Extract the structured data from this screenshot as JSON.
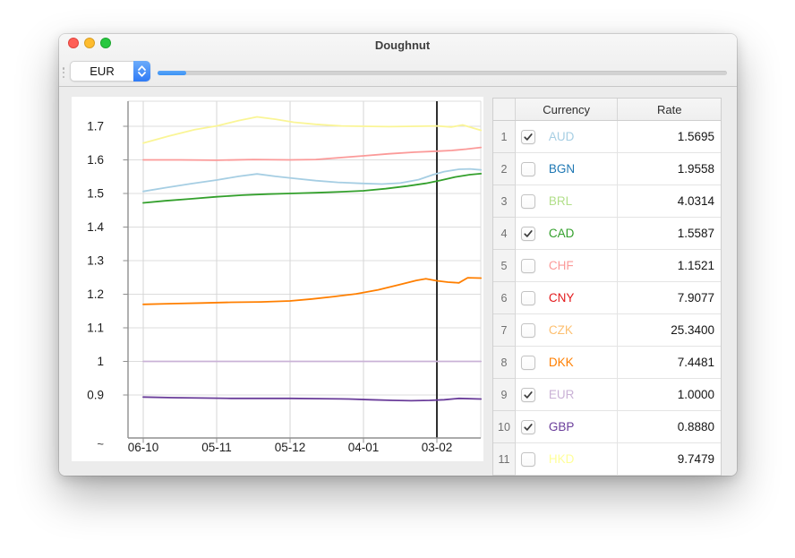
{
  "window": {
    "title": "Doughnut"
  },
  "toolbar": {
    "currency_selector": {
      "value": "EUR"
    },
    "slider": {
      "fill_ratio": 0.05,
      "track_color": "#d2d2d2",
      "fill_color": "#3b92f5"
    },
    "accent_color": "#2f7bf6"
  },
  "table": {
    "columns": [
      "Currency",
      "Rate"
    ],
    "rows": [
      {
        "num": "1",
        "code": "AUD",
        "rate": "1.5695",
        "checked": true,
        "color": "#a6cee3"
      },
      {
        "num": "2",
        "code": "BGN",
        "rate": "1.9558",
        "checked": false,
        "color": "#1f78b4"
      },
      {
        "num": "3",
        "code": "BRL",
        "rate": "4.0314",
        "checked": false,
        "color": "#b2df8a"
      },
      {
        "num": "4",
        "code": "CAD",
        "rate": "1.5587",
        "checked": true,
        "color": "#33a02c"
      },
      {
        "num": "5",
        "code": "CHF",
        "rate": "1.1521",
        "checked": false,
        "color": "#fb9a99"
      },
      {
        "num": "6",
        "code": "CNY",
        "rate": "7.9077",
        "checked": false,
        "color": "#e31a1c"
      },
      {
        "num": "7",
        "code": "CZK",
        "rate": "25.3400",
        "checked": false,
        "color": "#fdbf6f"
      },
      {
        "num": "8",
        "code": "DKK",
        "rate": "7.4481",
        "checked": false,
        "color": "#ff7f00"
      },
      {
        "num": "9",
        "code": "EUR",
        "rate": "1.0000",
        "checked": true,
        "color": "#cab2d6"
      },
      {
        "num": "10",
        "code": "GBP",
        "rate": "0.8880",
        "checked": true,
        "color": "#6a3d9a"
      },
      {
        "num": "11",
        "code": "HKD",
        "rate": "9.7479",
        "checked": false,
        "color": "#ffff99"
      },
      {
        "num": "",
        "code": "",
        "rate": "",
        "checked": false,
        "color": "",
        "partial": true
      }
    ]
  },
  "chart_data": {
    "type": "line",
    "title": "",
    "xlabel": "",
    "ylabel": "",
    "grid": true,
    "legend": false,
    "x_tick_labels": [
      "06-10",
      "05-11",
      "05-12",
      "04-01",
      "03-02"
    ],
    "y_tick_labels": [
      "1.7",
      "1.6",
      "1.5",
      "1.4",
      "1.3",
      "1.2",
      "1.1",
      "1",
      "0.9"
    ],
    "y_tick_values": [
      1.7,
      1.6,
      1.5,
      1.4,
      1.3,
      1.2,
      1.1,
      1.0,
      0.9
    ],
    "y_axis_break_label": "~",
    "ylim": [
      0.772,
      1.775
    ],
    "cursor_at_x_label": "03-02",
    "cursor_color": "#2e2e2e",
    "series": [
      {
        "name": "yellow-line",
        "color": "#faf596",
        "points": [
          [
            0,
            1.65
          ],
          [
            0.35,
            1.671
          ],
          [
            0.7,
            1.69
          ],
          [
            1,
            1.701
          ],
          [
            1.3,
            1.717
          ],
          [
            1.55,
            1.728
          ],
          [
            1.8,
            1.721
          ],
          [
            2.05,
            1.712
          ],
          [
            2.35,
            1.706
          ],
          [
            2.7,
            1.701
          ],
          [
            3,
            1.7
          ],
          [
            3.35,
            1.699
          ],
          [
            3.7,
            1.7
          ],
          [
            4,
            1.701
          ],
          [
            4.2,
            1.698
          ],
          [
            4.35,
            1.704
          ],
          [
            4.6,
            1.688
          ]
        ]
      },
      {
        "name": "salmon-line",
        "color": "#fb9a99",
        "points": [
          [
            0,
            1.6
          ],
          [
            0.5,
            1.6
          ],
          [
            1,
            1.599
          ],
          [
            1.5,
            1.601
          ],
          [
            2,
            1.6
          ],
          [
            2.35,
            1.601
          ],
          [
            2.7,
            1.607
          ],
          [
            3,
            1.612
          ],
          [
            3.35,
            1.618
          ],
          [
            3.7,
            1.623
          ],
          [
            4,
            1.626
          ],
          [
            4.2,
            1.628
          ],
          [
            4.4,
            1.632
          ],
          [
            4.6,
            1.637
          ]
        ]
      },
      {
        "name": "light-blue-line",
        "color": "#a6cee3",
        "points": [
          [
            0,
            1.506
          ],
          [
            0.3,
            1.517
          ],
          [
            0.65,
            1.529
          ],
          [
            1,
            1.54
          ],
          [
            1.3,
            1.551
          ],
          [
            1.55,
            1.558
          ],
          [
            1.8,
            1.551
          ],
          [
            2.05,
            1.545
          ],
          [
            2.35,
            1.538
          ],
          [
            2.65,
            1.533
          ],
          [
            2.95,
            1.53
          ],
          [
            3.25,
            1.528
          ],
          [
            3.5,
            1.531
          ],
          [
            3.75,
            1.541
          ],
          [
            3.95,
            1.556
          ],
          [
            4.1,
            1.565
          ],
          [
            4.3,
            1.572
          ],
          [
            4.45,
            1.573
          ],
          [
            4.6,
            1.57
          ]
        ]
      },
      {
        "name": "green-line",
        "color": "#33a02c",
        "points": [
          [
            0,
            1.472
          ],
          [
            0.3,
            1.478
          ],
          [
            0.65,
            1.484
          ],
          [
            1,
            1.49
          ],
          [
            1.35,
            1.495
          ],
          [
            1.7,
            1.498
          ],
          [
            2,
            1.5
          ],
          [
            2.35,
            1.502
          ],
          [
            2.7,
            1.505
          ],
          [
            3,
            1.508
          ],
          [
            3.3,
            1.514
          ],
          [
            3.6,
            1.522
          ],
          [
            3.85,
            1.53
          ],
          [
            4.05,
            1.539
          ],
          [
            4.25,
            1.549
          ],
          [
            4.45,
            1.556
          ],
          [
            4.6,
            1.559
          ]
        ]
      },
      {
        "name": "orange-line",
        "color": "#ff7f00",
        "points": [
          [
            0,
            1.17
          ],
          [
            0.4,
            1.172
          ],
          [
            0.8,
            1.174
          ],
          [
            1.2,
            1.176
          ],
          [
            1.6,
            1.177
          ],
          [
            2,
            1.18
          ],
          [
            2.3,
            1.186
          ],
          [
            2.6,
            1.193
          ],
          [
            2.9,
            1.201
          ],
          [
            3.2,
            1.213
          ],
          [
            3.5,
            1.229
          ],
          [
            3.72,
            1.241
          ],
          [
            3.85,
            1.246
          ],
          [
            4,
            1.24
          ],
          [
            4.15,
            1.236
          ],
          [
            4.3,
            1.234
          ],
          [
            4.42,
            1.249
          ],
          [
            4.6,
            1.248
          ]
        ]
      },
      {
        "name": "light-purple-line",
        "color": "#cab2d6",
        "points": [
          [
            0,
            1.0
          ],
          [
            4.6,
            1.0
          ]
        ]
      },
      {
        "name": "purple-line",
        "color": "#6a3d9a",
        "points": [
          [
            0,
            0.894
          ],
          [
            0.4,
            0.892
          ],
          [
            0.8,
            0.891
          ],
          [
            1.2,
            0.89
          ],
          [
            1.6,
            0.89
          ],
          [
            2,
            0.89
          ],
          [
            2.4,
            0.889
          ],
          [
            2.8,
            0.888
          ],
          [
            3.1,
            0.886
          ],
          [
            3.4,
            0.884
          ],
          [
            3.65,
            0.883
          ],
          [
            3.9,
            0.884
          ],
          [
            4.1,
            0.886
          ],
          [
            4.3,
            0.89
          ],
          [
            4.6,
            0.888
          ]
        ]
      }
    ]
  }
}
